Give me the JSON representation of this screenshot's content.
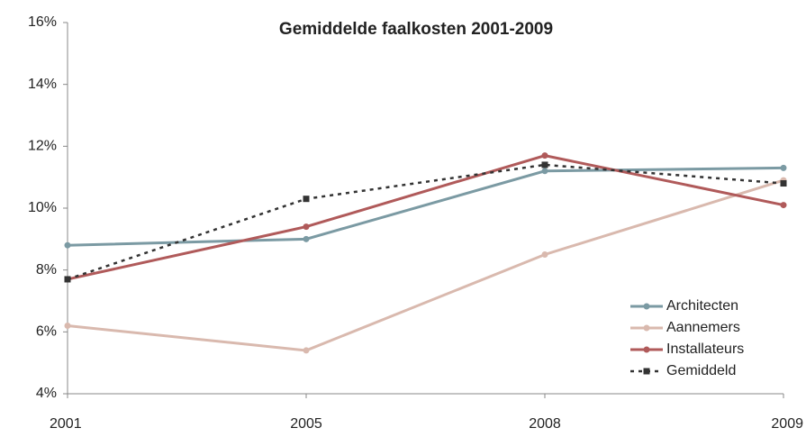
{
  "chart_data": {
    "type": "line",
    "title": "Gemiddelde faalkosten 2001-2009",
    "categories": [
      "2001",
      "2005",
      "2008",
      "2009"
    ],
    "series": [
      {
        "name": "Architecten",
        "color": "#7b9aa3",
        "dash": false,
        "values": [
          8.8,
          9.0,
          11.2,
          11.3
        ]
      },
      {
        "name": "Aannemers",
        "color": "#d9b9ae",
        "dash": false,
        "values": [
          6.2,
          5.4,
          8.5,
          10.9
        ]
      },
      {
        "name": "Installateurs",
        "color": "#b05a5a",
        "dash": false,
        "values": [
          7.7,
          9.4,
          11.7,
          10.1
        ]
      },
      {
        "name": "Gemiddeld",
        "color": "#333333",
        "dash": true,
        "values": [
          7.7,
          10.3,
          11.4,
          10.8
        ]
      }
    ],
    "ylim": [
      4,
      16
    ],
    "yticks": [
      {
        "value": 4,
        "label": "4%"
      },
      {
        "value": 6,
        "label": "6%"
      },
      {
        "value": 8,
        "label": "8%"
      },
      {
        "value": 10,
        "label": "10%"
      },
      {
        "value": 12,
        "label": "12%"
      },
      {
        "value": 14,
        "label": "14%"
      },
      {
        "value": 16,
        "label": "16%"
      }
    ],
    "grid": false,
    "legend": "lower-right"
  }
}
